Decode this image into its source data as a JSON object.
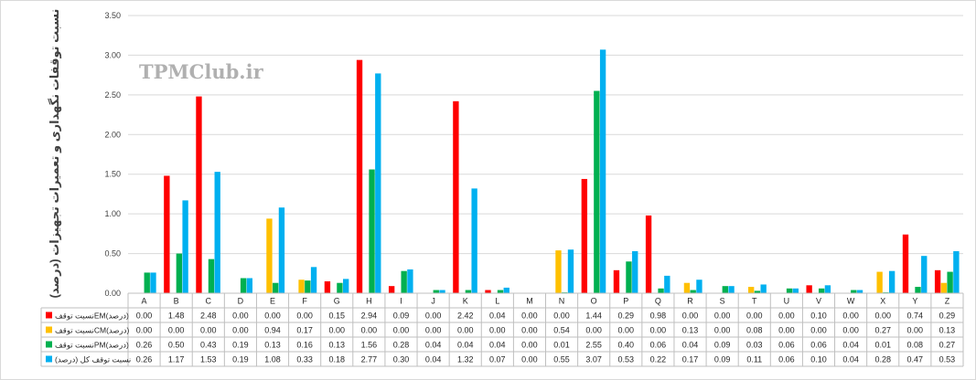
{
  "chart_data": {
    "type": "bar",
    "ylabel": "نسبت توقفات نگهداری و تعمیرات تجهیزات (درصد)",
    "watermark": "TPMClub.ir",
    "ylim": [
      0,
      3.5
    ],
    "ytick_labels": [
      "0.00",
      "0.50",
      "1.00",
      "1.50",
      "2.00",
      "2.50",
      "3.00",
      "3.50"
    ],
    "grid": true,
    "legend_placement": "data-table",
    "categories": [
      "A",
      "B",
      "C",
      "D",
      "E",
      "F",
      "G",
      "H",
      "I",
      "J",
      "K",
      "L",
      "M",
      "N",
      "O",
      "P",
      "Q",
      "R",
      "S",
      "T",
      "U",
      "V",
      "W",
      "X",
      "Y",
      "Z"
    ],
    "series": [
      {
        "name": "نسبت توقفEM(درصد)",
        "color": "#ff0000",
        "values": [
          0.0,
          1.48,
          2.48,
          0.0,
          0.0,
          0.0,
          0.15,
          2.94,
          0.09,
          0.0,
          2.42,
          0.04,
          0.0,
          0.0,
          1.44,
          0.29,
          0.98,
          0.0,
          0.0,
          0.0,
          0.0,
          0.1,
          0.0,
          0.0,
          0.74,
          0.29
        ],
        "labels": [
          "0.00",
          "1.48",
          "2.48",
          "0.00",
          "0.00",
          "0.00",
          "0.15",
          "2.94",
          "0.09",
          "0.00",
          "2.42",
          "0.04",
          "0.00",
          "0.00",
          "1.44",
          "0.29",
          "0.98",
          "0.00",
          "0.00",
          "0.00",
          "0.00",
          "0.10",
          "0.00",
          "0.00",
          "0.74",
          "0.29"
        ]
      },
      {
        "name": "نسبت توقفCM(درصد)",
        "color": "#ffc000",
        "values": [
          0.0,
          0.0,
          0.0,
          0.0,
          0.94,
          0.17,
          0.0,
          0.0,
          0.0,
          0.0,
          0.0,
          0.0,
          0.0,
          0.54,
          0.0,
          0.0,
          0.0,
          0.13,
          0.0,
          0.08,
          0.0,
          0.0,
          0.0,
          0.27,
          0.0,
          0.13
        ],
        "labels": [
          "0.00",
          "0.00",
          "0.00",
          "0.00",
          "0.94",
          "0.17",
          "0.00",
          "0.00",
          "0.00",
          "0.00",
          "0.00",
          "0.00",
          "0.00",
          "0.54",
          "0.00",
          "0.00",
          "0.00",
          "0.13",
          "0.00",
          "0.08",
          "0.00",
          "0.00",
          "0.00",
          "0.27",
          "0.00",
          "0.13"
        ]
      },
      {
        "name": "نسبت توقفPM(درصد)",
        "color": "#00b050",
        "values": [
          0.26,
          0.5,
          0.43,
          0.19,
          0.13,
          0.16,
          0.13,
          1.56,
          0.28,
          0.04,
          0.04,
          0.04,
          0.0,
          0.01,
          2.55,
          0.4,
          0.06,
          0.04,
          0.09,
          0.03,
          0.06,
          0.06,
          0.04,
          0.01,
          0.08,
          0.27
        ],
        "labels": [
          "0.26",
          "0.50",
          "0.43",
          "0.19",
          "0.13",
          "0.16",
          "0.13",
          "1.56",
          "0.28",
          "0.04",
          "0.04",
          "0.04",
          "0.00",
          "0.01",
          "2.55",
          "0.40",
          "0.06",
          "0.04",
          "0.09",
          "0.03",
          "0.06",
          "0.06",
          "0.04",
          "0.01",
          "0.08",
          "0.27"
        ]
      },
      {
        "name": "نسبت توقف کل (درصد)",
        "color": "#00b0f0",
        "values": [
          0.26,
          1.17,
          1.53,
          0.19,
          1.08,
          0.33,
          0.18,
          2.77,
          0.3,
          0.04,
          1.32,
          0.07,
          0.0,
          0.55,
          3.07,
          0.53,
          0.22,
          0.17,
          0.09,
          0.11,
          0.06,
          0.1,
          0.04,
          0.28,
          0.47,
          0.53
        ],
        "labels": [
          "0.26",
          "1.17",
          "1.53",
          "0.19",
          "1.08",
          "0.33",
          "0.18",
          "2.77",
          "0.30",
          "0.04",
          "1.32",
          "0.07",
          "0.00",
          "0.55",
          "3.07",
          "0.53",
          "0.22",
          "0.17",
          "0.09",
          "0.11",
          "0.06",
          "0.10",
          "0.04",
          "0.28",
          "0.47",
          "0.53"
        ]
      }
    ]
  }
}
